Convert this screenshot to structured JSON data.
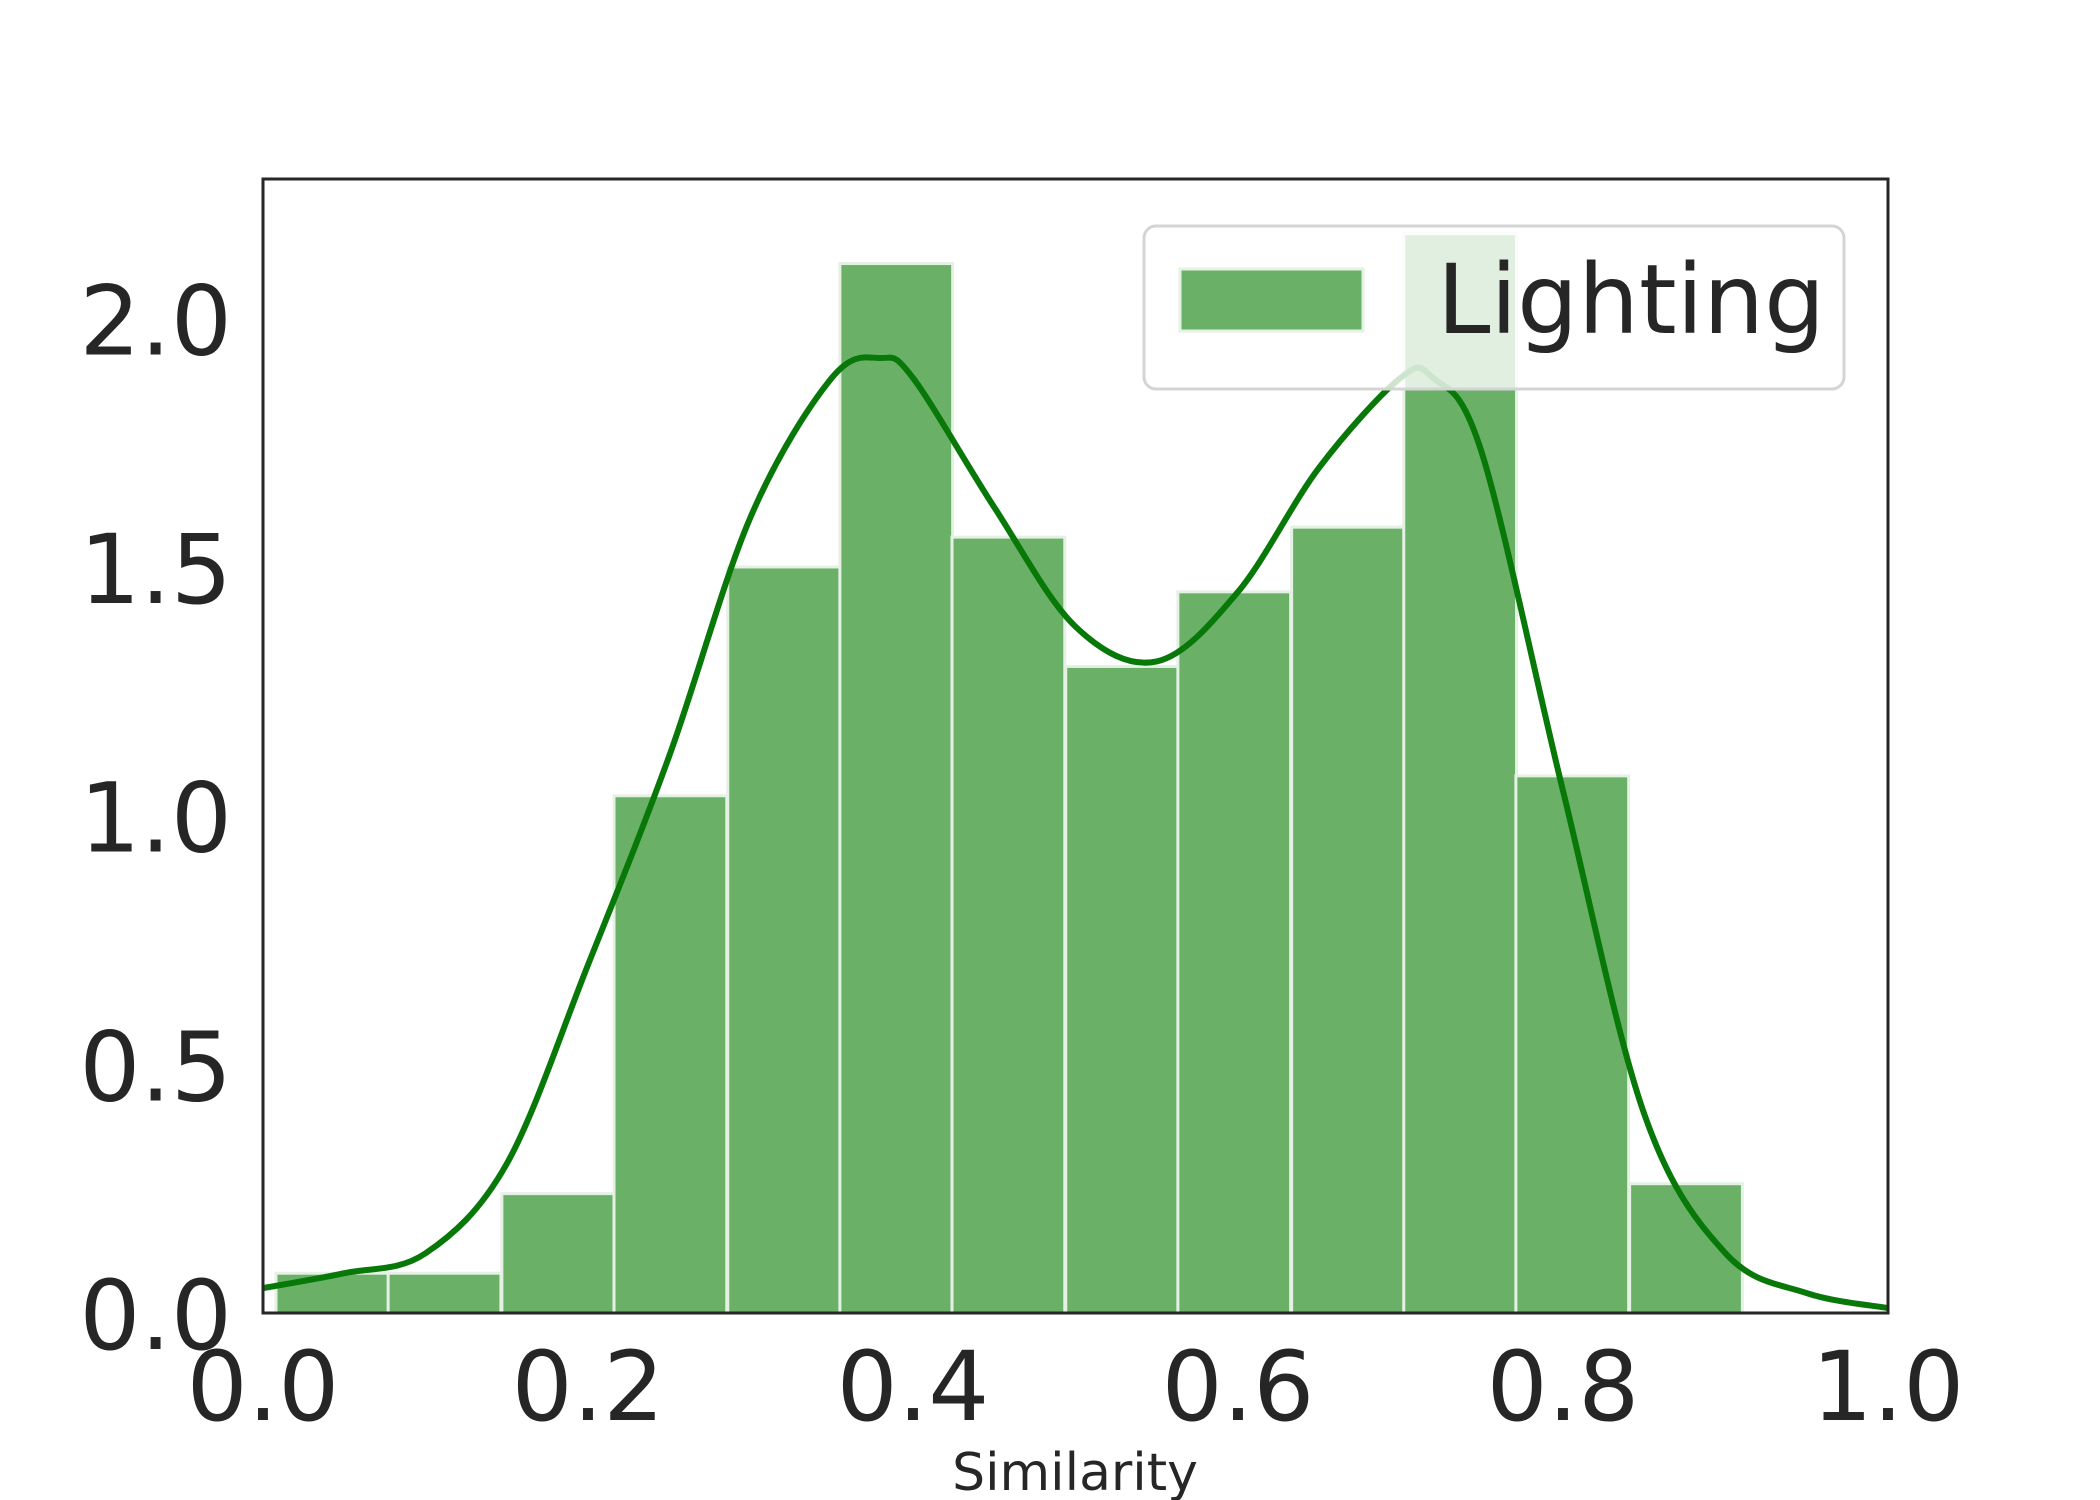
{
  "chart_data": {
    "type": "bar",
    "subtype": "histogram with density curve",
    "title": "",
    "xlabel": "Similarity",
    "ylabel": "",
    "xlim": [
      0.0,
      1.0
    ],
    "ylim": [
      0.0,
      2.28
    ],
    "x_ticks": [
      "0.0",
      "0.2",
      "0.4",
      "0.6",
      "0.8",
      "1.0"
    ],
    "x_tick_values": [
      0.0,
      0.2,
      0.4,
      0.6,
      0.8,
      1.0
    ],
    "y_ticks": [
      "0.0",
      "0.5",
      "1.0",
      "1.5",
      "2.0"
    ],
    "y_tick_values": [
      0.0,
      0.5,
      1.0,
      1.5,
      2.0
    ],
    "grid": false,
    "legend": {
      "position": "top-right",
      "entries": [
        "Lighting"
      ]
    },
    "bin_width": 0.0694,
    "bins": [
      {
        "x0": 0.008,
        "value": 0.08
      },
      {
        "x0": 0.077,
        "value": 0.08
      },
      {
        "x0": 0.147,
        "value": 0.24
      },
      {
        "x0": 0.216,
        "value": 1.04
      },
      {
        "x0": 0.286,
        "value": 1.5
      },
      {
        "x0": 0.355,
        "value": 2.11
      },
      {
        "x0": 0.424,
        "value": 1.56
      },
      {
        "x0": 0.494,
        "value": 1.3
      },
      {
        "x0": 0.563,
        "value": 1.45
      },
      {
        "x0": 0.633,
        "value": 1.58
      },
      {
        "x0": 0.702,
        "value": 2.17
      },
      {
        "x0": 0.771,
        "value": 1.08
      },
      {
        "x0": 0.841,
        "value": 0.26
      }
    ],
    "series": [
      {
        "name": "Lighting",
        "kind": "density",
        "x": [
          0.0,
          0.05,
          0.1,
          0.15,
          0.2,
          0.25,
          0.3,
          0.35,
          0.38,
          0.4,
          0.45,
          0.5,
          0.55,
          0.6,
          0.65,
          0.7,
          0.72,
          0.75,
          0.8,
          0.85,
          0.9,
          0.95,
          1.0
        ],
        "y": [
          0.05,
          0.08,
          0.12,
          0.3,
          0.7,
          1.12,
          1.6,
          1.88,
          1.92,
          1.88,
          1.62,
          1.38,
          1.31,
          1.45,
          1.7,
          1.88,
          1.88,
          1.73,
          1.05,
          0.4,
          0.12,
          0.04,
          0.01
        ]
      }
    ],
    "colors": {
      "bar_fill": "#6ab167",
      "bar_edge": "#e6f1e5",
      "kde_line": "#087808",
      "axes_edge": "#262626",
      "text": "#262626",
      "legend_edge": "#d4d4d4"
    }
  }
}
